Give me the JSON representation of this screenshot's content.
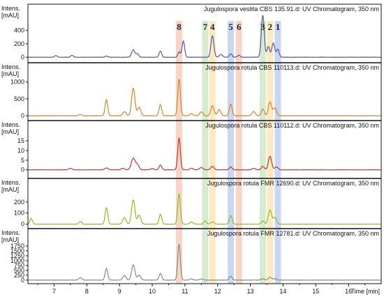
{
  "chart_data": {
    "type": "line",
    "xlabel": "Time [min]",
    "xlim": [
      6.2,
      17.0
    ],
    "x_ticks": [
      "7",
      "8",
      "9",
      "10",
      "11",
      "12",
      "13",
      "14",
      "15",
      "16"
    ],
    "ylabel_line1": "Intens.",
    "ylabel_line2": "[mAU]",
    "highlight_bands": [
      {
        "label": "8",
        "x": 10.82,
        "color": "#f6c7b3"
      },
      {
        "label": "7",
        "x": 11.62,
        "color": "#c9e4c0"
      },
      {
        "label": "4",
        "x": 11.84,
        "color": "#fbe3ad"
      },
      {
        "label": "5",
        "x": 12.4,
        "color": "#b7c9ee"
      },
      {
        "label": "6",
        "x": 12.65,
        "color": "#f6c7b3"
      },
      {
        "label": "3",
        "x": 13.38,
        "color": "#c9e4c0"
      },
      {
        "label": "2",
        "x": 13.6,
        "color": "#fbe3ad"
      },
      {
        "label": "1",
        "x": 13.84,
        "color": "#b7c9ee"
      }
    ],
    "panels": [
      {
        "title": "Jugulospora vestita CBS 135.91.d: UV Chromatogram, 350 nm",
        "color": "#55589a",
        "ylim": [
          -40,
          600
        ],
        "y_ticks": [
          0,
          200,
          400
        ],
        "peaks": [
          [
            7.05,
            25,
            0.04
          ],
          [
            7.55,
            30,
            0.04
          ],
          [
            8.6,
            20,
            0.04
          ],
          [
            9.42,
            110,
            0.05
          ],
          [
            9.55,
            50,
            0.04
          ],
          [
            10.25,
            90,
            0.04
          ],
          [
            10.82,
            80,
            0.035
          ],
          [
            10.95,
            240,
            0.04
          ],
          [
            11.84,
            320,
            0.045
          ],
          [
            12.1,
            40,
            0.05
          ],
          [
            12.4,
            50,
            0.04
          ],
          [
            12.65,
            30,
            0.04
          ],
          [
            13.38,
            620,
            0.045
          ],
          [
            13.55,
            160,
            0.04
          ],
          [
            13.7,
            210,
            0.045
          ],
          [
            13.84,
            120,
            0.04
          ]
        ]
      },
      {
        "title": "Jugulospora rotula CBS 110113.d: UV Chromatogram, 350 nm",
        "color": "#d9822b",
        "ylim": [
          -60,
          1200
        ],
        "y_ticks": [
          0,
          500,
          1000
        ],
        "peaks": [
          [
            7.8,
            40,
            0.04
          ],
          [
            8.6,
            480,
            0.04
          ],
          [
            9.15,
            120,
            0.05
          ],
          [
            9.42,
            820,
            0.05
          ],
          [
            9.6,
            250,
            0.05
          ],
          [
            10.25,
            330,
            0.04
          ],
          [
            10.82,
            1080,
            0.04
          ],
          [
            11.2,
            60,
            0.05
          ],
          [
            11.5,
            120,
            0.05
          ],
          [
            11.84,
            300,
            0.05
          ],
          [
            12.05,
            180,
            0.05
          ],
          [
            12.4,
            350,
            0.04
          ],
          [
            13.1,
            130,
            0.05
          ],
          [
            13.38,
            200,
            0.045
          ],
          [
            13.6,
            410,
            0.05
          ],
          [
            13.75,
            230,
            0.05
          ]
        ]
      },
      {
        "title": "Jugulospora rotula CBS 110112.d: UV Chromatogram, 350 nm",
        "color": "#c0392b",
        "ylim": [
          -3,
          19
        ],
        "y_ticks": [
          0,
          5,
          10,
          15
        ],
        "peaks": [
          [
            7.5,
            0.8,
            0.05
          ],
          [
            8.6,
            1.0,
            0.05
          ],
          [
            9.1,
            0.8,
            0.05
          ],
          [
            9.42,
            6.0,
            0.06
          ],
          [
            9.55,
            2.5,
            0.05
          ],
          [
            10.0,
            0.6,
            0.05
          ],
          [
            10.25,
            2.5,
            0.04
          ],
          [
            10.82,
            16.5,
            0.04
          ],
          [
            11.2,
            0.8,
            0.05
          ],
          [
            11.5,
            1.2,
            0.05
          ],
          [
            11.84,
            1.8,
            0.05
          ],
          [
            12.4,
            1.5,
            0.04
          ],
          [
            13.1,
            0.8,
            0.05
          ],
          [
            13.38,
            1.8,
            0.045
          ],
          [
            13.6,
            7.0,
            0.05
          ],
          [
            13.8,
            1.5,
            0.05
          ]
        ]
      },
      {
        "title": "Jugulospora rotula FMR 12690.d: UV Chromatogram, 350 nm",
        "color": "#8cbf1f",
        "ylim": [
          -15,
          300
        ],
        "y_ticks": [
          0,
          100,
          200
        ],
        "peaks": [
          [
            6.3,
            50,
            0.04
          ],
          [
            7.8,
            25,
            0.04
          ],
          [
            8.6,
            150,
            0.04
          ],
          [
            9.15,
            60,
            0.05
          ],
          [
            9.42,
            220,
            0.05
          ],
          [
            9.6,
            80,
            0.05
          ],
          [
            10.25,
            90,
            0.04
          ],
          [
            10.82,
            275,
            0.04
          ],
          [
            11.2,
            20,
            0.05
          ],
          [
            11.62,
            30,
            0.04
          ],
          [
            11.84,
            20,
            0.05
          ],
          [
            12.4,
            80,
            0.04
          ],
          [
            13.38,
            30,
            0.045
          ],
          [
            13.6,
            130,
            0.05
          ],
          [
            13.75,
            60,
            0.05
          ]
        ]
      },
      {
        "title": "Jugulospora rotula FMR 12781.d: UV Chromatogram, 350 nm",
        "color": "#7f8f7f",
        "ylim": [
          -40,
          2000
        ],
        "y_ticks": [
          0,
          250,
          500,
          750,
          1000,
          1250,
          1500,
          1750
        ],
        "peaks": [
          [
            7.8,
            120,
            0.05
          ],
          [
            8.6,
            600,
            0.04
          ],
          [
            9.15,
            230,
            0.05
          ],
          [
            9.42,
            780,
            0.05
          ],
          [
            9.6,
            250,
            0.05
          ],
          [
            10.25,
            340,
            0.04
          ],
          [
            10.82,
            1850,
            0.04
          ],
          [
            11.2,
            60,
            0.05
          ],
          [
            11.5,
            60,
            0.05
          ],
          [
            12.4,
            200,
            0.04
          ],
          [
            13.38,
            70,
            0.045
          ],
          [
            13.6,
            140,
            0.05
          ],
          [
            13.75,
            70,
            0.05
          ]
        ]
      }
    ]
  }
}
